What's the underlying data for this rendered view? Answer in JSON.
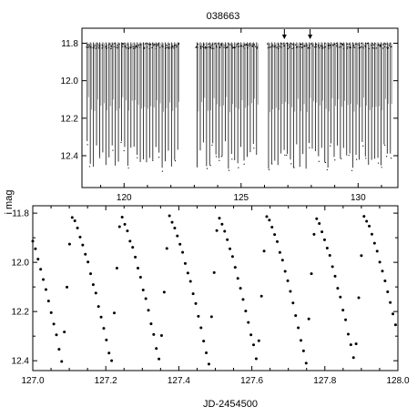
{
  "title": "038663",
  "ylabel": "i mag",
  "xlabel": "JD-2454500",
  "colors": {
    "ink": "#000000",
    "background": "#ffffff"
  },
  "chart_data": [
    {
      "type": "scatter",
      "name_hint": "top",
      "xlim": [
        118.2,
        131.7
      ],
      "ylim": [
        12.57,
        11.72
      ],
      "y_inverted": true,
      "x_ticks": [
        120,
        125,
        130
      ],
      "x_tick_labels": [
        "120",
        "125",
        "130"
      ],
      "y_ticks": [
        11.8,
        12.0,
        12.2,
        12.4
      ],
      "y_tick_labels": [
        "11.8",
        "12.0",
        "12.2",
        "12.4"
      ],
      "observing_segments": [
        [
          118.35,
          122.45
        ],
        [
          123.05,
          125.85
        ],
        [
          126.1,
          131.55
        ]
      ],
      "period_days": 0.1335,
      "max_mag": 11.8,
      "min_mag": 12.47,
      "arrows_at_x": [
        126.85,
        127.95
      ],
      "grid": false
    },
    {
      "type": "scatter",
      "name_hint": "bottom",
      "xlim": [
        127.0,
        128.0
      ],
      "ylim": [
        12.44,
        11.77
      ],
      "y_inverted": true,
      "x_ticks": [
        127.0,
        127.2,
        127.4,
        127.6,
        127.8,
        128.0
      ],
      "x_tick_labels": [
        "127.0",
        "127.2",
        "127.4",
        "127.6",
        "127.8",
        "128.0"
      ],
      "y_ticks": [
        11.8,
        12.0,
        12.2,
        12.4
      ],
      "y_tick_labels": [
        "11.8",
        "12.0",
        "12.2",
        "12.4"
      ],
      "period_days": 0.1335,
      "phase_ref_max": 127.106,
      "max_mag": 11.81,
      "min_mag": 12.42,
      "grid": false
    }
  ]
}
